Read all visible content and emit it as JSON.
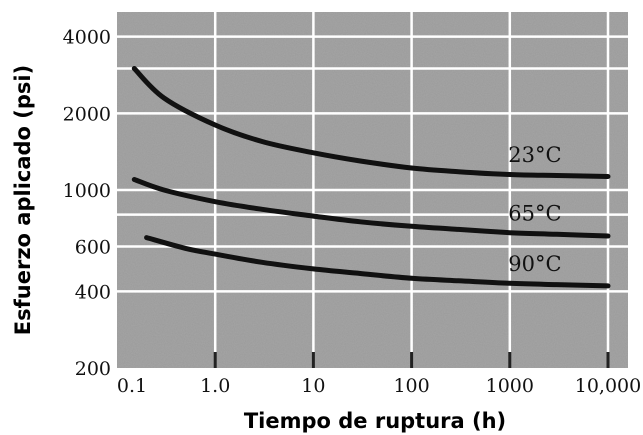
{
  "chart_data": {
    "type": "line",
    "xlabel": "Tiempo de ruptura (h)",
    "ylabel": "Esfuerzo aplicado (psi)",
    "x_scale": "log",
    "y_scale": "log",
    "xlim": [
      0.1,
      10000
    ],
    "ylim": [
      200,
      5000
    ],
    "x_ticks": [
      0.1,
      1,
      10,
      100,
      1000,
      10000
    ],
    "x_tick_labels": [
      "0.1",
      "1.0",
      "10",
      "100",
      "1000",
      "10,000"
    ],
    "y_ticks": [
      200,
      400,
      600,
      1000,
      2000,
      4000
    ],
    "y_tick_labels": [
      "200",
      "400",
      "600",
      "1000",
      "2000",
      "4000"
    ],
    "grid": true,
    "series": [
      {
        "name": "23°C",
        "x": [
          0.15,
          0.3,
          1,
          3,
          10,
          30,
          100,
          300,
          1000,
          3000,
          10000
        ],
        "y": [
          3000,
          2300,
          1800,
          1550,
          1400,
          1300,
          1220,
          1180,
          1150,
          1140,
          1130
        ]
      },
      {
        "name": "65°C",
        "x": [
          0.15,
          0.3,
          1,
          3,
          10,
          30,
          100,
          300,
          1000,
          3000,
          10000
        ],
        "y": [
          1100,
          1000,
          900,
          840,
          790,
          750,
          720,
          700,
          680,
          670,
          660
        ]
      },
      {
        "name": "90°C",
        "x": [
          0.2,
          0.5,
          1,
          3,
          10,
          30,
          100,
          300,
          1000,
          3000,
          10000
        ],
        "y": [
          650,
          590,
          560,
          520,
          490,
          470,
          450,
          440,
          430,
          425,
          420
        ]
      }
    ]
  },
  "colors": {
    "plot_background": "#9a9a9a",
    "grid": "#ffffff",
    "line": "#111111"
  }
}
